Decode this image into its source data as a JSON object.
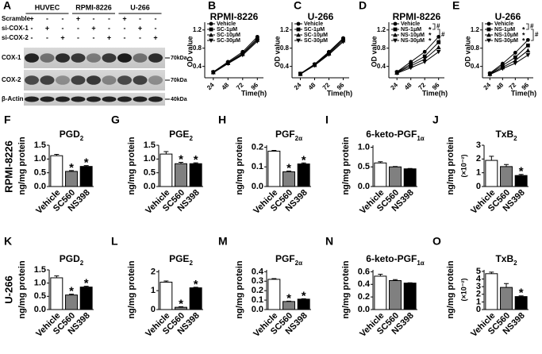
{
  "blot": {
    "panel": "A",
    "groups": [
      "HUVEC",
      "RPMI-8226",
      "U-266"
    ],
    "conditions": [
      {
        "label": "Scramble",
        "signs": [
          "+",
          "-",
          "-",
          "+",
          "-",
          "-",
          "+",
          "-",
          "-"
        ]
      },
      {
        "label": "si-COX-1",
        "signs": [
          "-",
          "+",
          "-",
          "-",
          "+",
          "-",
          "-",
          "+",
          "-"
        ]
      },
      {
        "label": "si-COX-2",
        "signs": [
          "-",
          "-",
          "+",
          "-",
          "-",
          "+",
          "-",
          "-",
          "+"
        ]
      }
    ],
    "rows": [
      {
        "label": "COX-1",
        "size": "70kDa"
      },
      {
        "label": "COX-2",
        "size": "70kDa"
      },
      {
        "label": "β-Actin",
        "size": "40kDa"
      }
    ]
  },
  "row_labels": [
    "RPMI-8226",
    "U-266"
  ],
  "chart_data": [
    {
      "type": "line",
      "panel": "B",
      "title": "RPMI-8226",
      "x_label": "Time(h)",
      "y_label": "OD value",
      "x": [
        24,
        48,
        72,
        96
      ],
      "xlim": [
        10,
        106
      ],
      "xticks": [
        24,
        48,
        72,
        96
      ],
      "ylim": [
        0.15,
        1.3
      ],
      "yticks": [
        0.4,
        0.8,
        1.2
      ],
      "series": [
        {
          "name": "Vehicle",
          "marker": "circle",
          "color": "#000000",
          "values": [
            0.28,
            0.5,
            0.72,
            1.05
          ]
        },
        {
          "name": "SC-1μM",
          "marker": "square",
          "color": "#000000",
          "values": [
            0.27,
            0.48,
            0.69,
            1.01
          ]
        },
        {
          "name": "SC-10μM",
          "marker": "triangle",
          "color": "#000000",
          "values": [
            0.27,
            0.47,
            0.67,
            0.98
          ]
        },
        {
          "name": "SC-30μM",
          "marker": "triangle-down",
          "color": "#000000",
          "values": [
            0.26,
            0.46,
            0.65,
            0.95
          ]
        }
      ]
    },
    {
      "type": "line",
      "panel": "C",
      "title": "U-266",
      "x_label": "Time(h)",
      "y_label": "OD value",
      "x": [
        24,
        48,
        72,
        96
      ],
      "xlim": [
        10,
        106
      ],
      "xticks": [
        24,
        48,
        72,
        96
      ],
      "ylim": [
        0.15,
        1.3
      ],
      "yticks": [
        0.4,
        0.8,
        1.2
      ],
      "series": [
        {
          "name": "Vehicle",
          "marker": "circle",
          "color": "#000000",
          "values": [
            0.24,
            0.45,
            0.72,
            1.02
          ]
        },
        {
          "name": "SC-1μM",
          "marker": "square",
          "color": "#000000",
          "values": [
            0.24,
            0.44,
            0.7,
            1.0
          ]
        },
        {
          "name": "SC-10μM",
          "marker": "triangle",
          "color": "#000000",
          "values": [
            0.23,
            0.43,
            0.68,
            0.97
          ]
        },
        {
          "name": "SC-30μM",
          "marker": "triangle-down",
          "color": "#000000",
          "values": [
            0.23,
            0.42,
            0.66,
            0.94
          ]
        }
      ]
    },
    {
      "type": "line",
      "panel": "D",
      "title": "RPMI-8226",
      "x_label": "Time(h)",
      "y_label": "OD value",
      "x": [
        24,
        48,
        72,
        96
      ],
      "xlim": [
        10,
        106
      ],
      "xticks": [
        24,
        48,
        72,
        96
      ],
      "ylim": [
        0.15,
        1.3
      ],
      "yticks": [
        0.4,
        0.8,
        1.2
      ],
      "bracket_labels": [
        "#",
        "#"
      ],
      "series": [
        {
          "name": "Vehicle",
          "marker": "circle",
          "color": "#000000",
          "values": [
            0.28,
            0.5,
            0.72,
            1.05
          ]
        },
        {
          "name": "NS-1μM",
          "marker": "square",
          "color": "#000000",
          "significance": "*",
          "values": [
            0.27,
            0.45,
            0.62,
            0.93
          ]
        },
        {
          "name": "NS-10μM",
          "marker": "triangle",
          "color": "#000000",
          "significance": "*",
          "values": [
            0.26,
            0.41,
            0.56,
            0.82
          ]
        },
        {
          "name": "NS-30μM",
          "marker": "triangle-down",
          "color": "#000000",
          "significance": "*",
          "values": [
            0.25,
            0.37,
            0.5,
            0.72
          ]
        }
      ]
    },
    {
      "type": "line",
      "panel": "E",
      "title": "U-266",
      "x_label": "Time(h)",
      "y_label": "OD value",
      "x": [
        24,
        48,
        72,
        96
      ],
      "xlim": [
        10,
        106
      ],
      "xticks": [
        24,
        48,
        72,
        96
      ],
      "ylim": [
        0.15,
        1.3
      ],
      "yticks": [
        0.4,
        0.8,
        1.2
      ],
      "bracket_labels": [
        "#",
        "#"
      ],
      "series": [
        {
          "name": "Vehicle",
          "marker": "circle",
          "color": "#000000",
          "values": [
            0.25,
            0.46,
            0.7,
            0.98
          ]
        },
        {
          "name": "NS-1μM",
          "marker": "square",
          "color": "#000000",
          "significance": "*",
          "values": [
            0.24,
            0.42,
            0.6,
            0.86
          ]
        },
        {
          "name": "NS-10μM",
          "marker": "triangle",
          "color": "#000000",
          "significance": "*",
          "values": [
            0.23,
            0.38,
            0.53,
            0.75
          ]
        },
        {
          "name": "NS-30μM",
          "marker": "triangle-down",
          "color": "#000000",
          "significance": "*",
          "values": [
            0.22,
            0.35,
            0.47,
            0.65
          ]
        }
      ]
    },
    {
      "type": "bar",
      "panel": "F",
      "title": "PGD",
      "title_sub": "2",
      "y_label": "ng/mg protein",
      "categories": [
        "Vehicle",
        "SC560",
        "NS398"
      ],
      "colors": [
        "#ffffff",
        "#808080",
        "#000000"
      ],
      "values": [
        1.12,
        0.55,
        0.73
      ],
      "errors": [
        0.05,
        0.03,
        0.03
      ],
      "significance": [
        null,
        "*",
        "*"
      ],
      "ylim": [
        0,
        1.5
      ],
      "yticks": [
        {
          "value": 0,
          "label": "0.0"
        },
        0.5,
        {
          "value": 1,
          "label": "1.0"
        },
        1.5
      ]
    },
    {
      "type": "bar",
      "panel": "G",
      "title": "PGE",
      "title_sub": "2",
      "y_label": "ng/mg protein",
      "categories": [
        "Vehicle",
        "SC560",
        "NS398"
      ],
      "colors": [
        "#ffffff",
        "#808080",
        "#000000"
      ],
      "values": [
        1.18,
        0.83,
        0.83
      ],
      "errors": [
        0.09,
        0.05,
        0.03
      ],
      "significance": [
        null,
        "*",
        "*"
      ],
      "ylim": [
        0,
        1.5
      ],
      "yticks": [
        {
          "value": 0,
          "label": "0.0"
        },
        0.5,
        {
          "value": 1,
          "label": "1.0"
        },
        1.5
      ]
    },
    {
      "type": "bar",
      "panel": "H",
      "title": "PGF",
      "title_sub": "2α",
      "y_label": "ng/mg protein",
      "categories": [
        "Vehicle",
        "SC560",
        "NS398"
      ],
      "colors": [
        "#ffffff",
        "#808080",
        "#000000"
      ],
      "values": [
        0.18,
        0.075,
        0.115
      ],
      "errors": [
        0.004,
        0.004,
        0.005
      ],
      "significance": [
        null,
        "*",
        "*"
      ],
      "ylim": [
        0,
        0.21
      ],
      "yticks": [
        {
          "value": 0,
          "label": "0.0"
        },
        0.1,
        0.2
      ]
    },
    {
      "type": "bar",
      "panel": "I",
      "title": "6-keto-PGF",
      "title_sub": "1α",
      "y_label": "ng/mg protein",
      "categories": [
        "Vehicle",
        "SC560",
        "NS398"
      ],
      "colors": [
        "#ffffff",
        "#808080",
        "#000000"
      ],
      "values": [
        0.6,
        0.5,
        0.45
      ],
      "errors": [
        0.03,
        0.01,
        0.01
      ],
      "significance": [
        null,
        null,
        null
      ],
      "ylim": [
        0,
        1.05
      ],
      "yticks": [
        {
          "value": 0,
          "label": "0.0"
        },
        0.5,
        {
          "value": 1,
          "label": "1.0"
        }
      ]
    },
    {
      "type": "bar",
      "panel": "J",
      "title": "TxB",
      "title_sub": "2",
      "y_label": "ng/mg protein",
      "y_unit": "(×10⁻²)",
      "categories": [
        "Vehicle",
        "SC560",
        "NS398"
      ],
      "colors": [
        "#ffffff",
        "#808080",
        "#000000"
      ],
      "values": [
        1.9,
        1.45,
        0.8
      ],
      "errors": [
        0.3,
        0.15,
        0.08
      ],
      "significance": [
        null,
        null,
        "*"
      ],
      "ylim": [
        0,
        3
      ],
      "yticks": [
        0,
        1,
        2,
        3
      ]
    },
    {
      "type": "bar",
      "panel": "K",
      "title": "PGD",
      "title_sub": "2",
      "y_label": "ng/mg protein",
      "categories": [
        "Vehicle",
        "SC560",
        "NS398"
      ],
      "colors": [
        "#ffffff",
        "#808080",
        "#000000"
      ],
      "values": [
        1.2,
        0.55,
        0.85
      ],
      "errors": [
        0.07,
        0.03,
        0.03
      ],
      "significance": [
        null,
        "*",
        "*"
      ],
      "ylim": [
        0,
        1.5
      ],
      "yticks": [
        {
          "value": 0,
          "label": "0.0"
        },
        0.5,
        {
          "value": 1,
          "label": "1.0"
        },
        1.5
      ]
    },
    {
      "type": "bar",
      "panel": "L",
      "title": "PGE",
      "title_sub": "2",
      "y_label": "ng/mg protein",
      "categories": [
        "Vehicle",
        "SC560",
        "NS398"
      ],
      "colors": [
        "#ffffff",
        "#808080",
        "#000000"
      ],
      "values": [
        1.45,
        0.12,
        1.15
      ],
      "errors": [
        0.06,
        0.03,
        0.03
      ],
      "significance": [
        null,
        "*",
        "*"
      ],
      "ylim": [
        0,
        2.1
      ],
      "yticks": [
        0,
        1,
        2
      ]
    },
    {
      "type": "bar",
      "panel": "M",
      "title": "PGF",
      "title_sub": "2α",
      "y_label": "ng/mg protein",
      "categories": [
        "Vehicle",
        "SC560",
        "NS398"
      ],
      "colors": [
        "#ffffff",
        "#808080",
        "#000000"
      ],
      "values": [
        0.32,
        0.085,
        0.11
      ],
      "errors": [
        0.008,
        0.004,
        0.004
      ],
      "significance": [
        null,
        "*",
        "*"
      ],
      "ylim": [
        0,
        0.42
      ],
      "yticks": [
        {
          "value": 0,
          "label": "0.0"
        },
        0.1,
        0.2,
        0.3,
        0.4
      ]
    },
    {
      "type": "bar",
      "panel": "N",
      "title": "6-keto-PGF",
      "title_sub": "1α",
      "y_label": "ng/mg protein",
      "categories": [
        "Vehicle",
        "SC560",
        "NS398"
      ],
      "colors": [
        "#ffffff",
        "#808080",
        "#000000"
      ],
      "values": [
        0.53,
        0.46,
        0.42
      ],
      "errors": [
        0.03,
        0.015,
        0.005
      ],
      "significance": [
        null,
        null,
        null
      ],
      "ylim": [
        0,
        0.63
      ],
      "yticks": [
        {
          "value": 0,
          "label": "0.0"
        },
        0.2,
        0.4,
        0.6
      ]
    },
    {
      "type": "bar",
      "panel": "O",
      "title": "TxB",
      "title_sub": "2",
      "y_label": "ng/mg protein",
      "y_unit": "(×10⁻²)",
      "categories": [
        "Vehicle",
        "SC560",
        "NS398"
      ],
      "colors": [
        "#ffffff",
        "#808080",
        "#000000"
      ],
      "values": [
        4.7,
        2.9,
        1.7
      ],
      "errors": [
        0.2,
        0.5,
        0.1
      ],
      "significance": [
        null,
        null,
        "*"
      ],
      "ylim": [
        0,
        5.2
      ],
      "yticks": [
        0,
        1,
        2,
        3,
        4,
        5
      ]
    }
  ]
}
